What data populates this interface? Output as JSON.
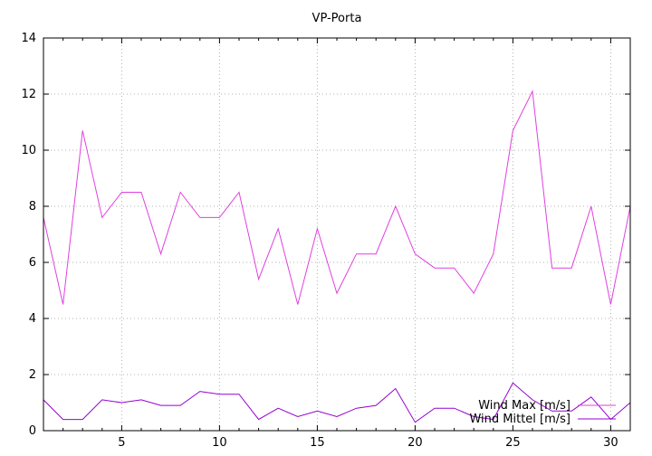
{
  "chart_data": {
    "type": "line",
    "title": "VP-Porta",
    "xlabel": "",
    "ylabel": "",
    "xlim": [
      1,
      31
    ],
    "ylim": [
      0,
      14
    ],
    "x_ticks": [
      5,
      10,
      15,
      20,
      25,
      30
    ],
    "y_ticks": [
      0,
      2,
      4,
      6,
      8,
      10,
      12,
      14
    ],
    "grid": true,
    "legend_position": "bottom-right",
    "x": [
      1,
      2,
      3,
      4,
      5,
      6,
      7,
      8,
      9,
      10,
      11,
      12,
      13,
      14,
      15,
      16,
      17,
      18,
      19,
      20,
      21,
      22,
      23,
      24,
      25,
      26,
      27,
      28,
      29,
      30,
      31
    ],
    "series": [
      {
        "name": "Wind Max [m/s]",
        "color": "#e040e0",
        "values": [
          7.6,
          4.5,
          10.7,
          7.6,
          8.5,
          8.5,
          6.3,
          8.5,
          7.6,
          7.6,
          8.5,
          5.4,
          7.2,
          4.5,
          7.2,
          4.9,
          6.3,
          6.3,
          8.0,
          6.3,
          5.8,
          5.8,
          4.9,
          6.3,
          10.7,
          12.1,
          5.8,
          5.8,
          8.0,
          4.5,
          8.0
        ]
      },
      {
        "name": "Wind Mittel [m/s]",
        "color": "#9400d3",
        "values": [
          1.1,
          0.4,
          0.4,
          1.1,
          1.0,
          1.1,
          0.9,
          0.9,
          1.4,
          1.3,
          1.3,
          0.4,
          0.8,
          0.5,
          0.7,
          0.5,
          0.8,
          0.9,
          1.5,
          0.3,
          0.8,
          0.8,
          0.5,
          0.4,
          1.7,
          1.1,
          0.7,
          0.7,
          1.2,
          0.4,
          1.0
        ]
      }
    ]
  }
}
